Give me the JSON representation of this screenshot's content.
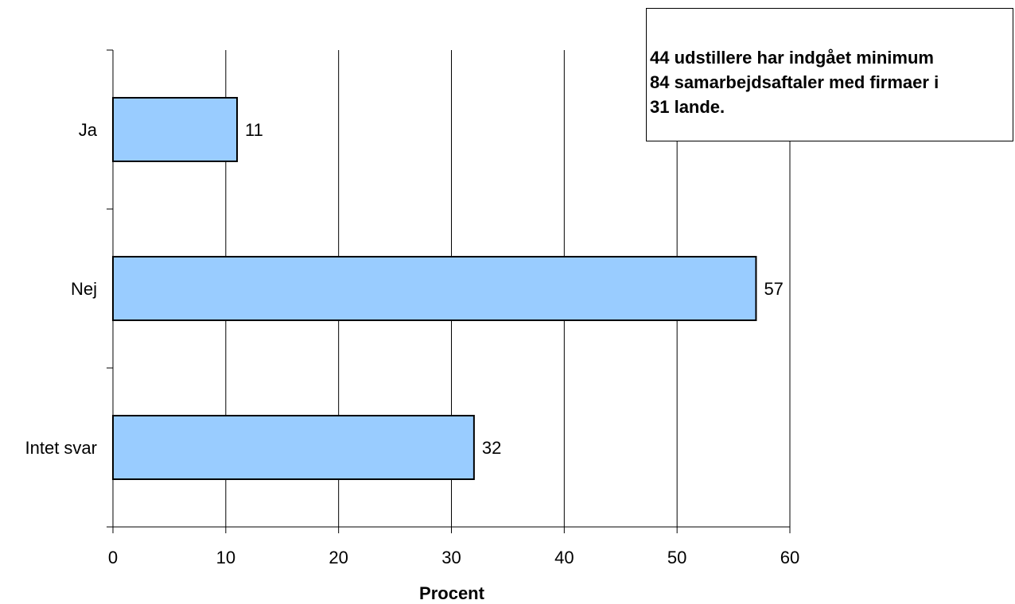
{
  "chart_data": {
    "type": "bar",
    "orientation": "horizontal",
    "categories": [
      "Ja",
      "Nej",
      "Intet svar"
    ],
    "values": [
      11,
      57,
      32
    ],
    "data_labels": [
      "11",
      "57",
      "32"
    ],
    "xlabel": "Procent",
    "xlim": [
      0,
      60
    ],
    "xticks": [
      0,
      10,
      20,
      30,
      40,
      50,
      60
    ],
    "xtick_labels": [
      "0",
      "10",
      "20",
      "30",
      "40",
      "50",
      "60"
    ],
    "grid": "vertical",
    "legend": "none",
    "bar_color": "#99ccff",
    "bar_edge_color": "#000000",
    "grid_color": "#000000"
  },
  "note": {
    "lines": [
      "44 udstillere har indgået minimum",
      "84 samarbejdsaftaler med firmaer i",
      "31 lande."
    ]
  }
}
